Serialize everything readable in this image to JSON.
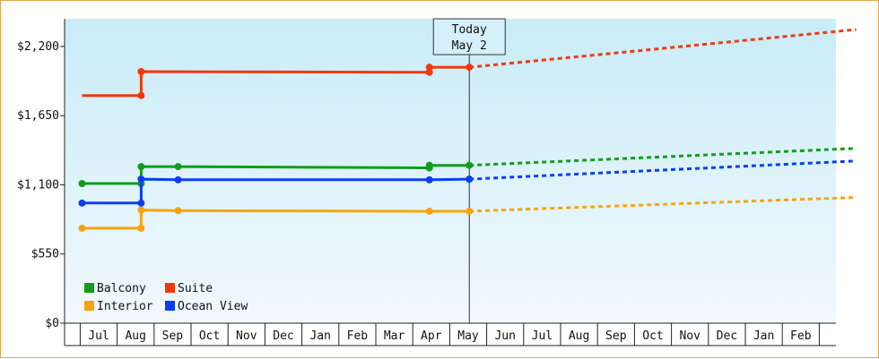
{
  "chart_data": {
    "type": "line",
    "title": "",
    "xlabel": "",
    "ylabel": "",
    "ylim": [
      0,
      2420
    ],
    "y_ticks": [
      {
        "value": 0,
        "label": "$0"
      },
      {
        "value": 550,
        "label": "$550"
      },
      {
        "value": 1100,
        "label": "$1,100"
      },
      {
        "value": 1650,
        "label": "$1,650"
      },
      {
        "value": 2200,
        "label": "$2,200"
      }
    ],
    "months": [
      "Jul",
      "Aug",
      "Sep",
      "Oct",
      "Nov",
      "Dec",
      "Jan",
      "Feb",
      "Mar",
      "Apr",
      "May",
      "Jun",
      "Jul",
      "Aug",
      "Sep",
      "Oct",
      "Nov",
      "Dec",
      "Jan",
      "Feb"
    ],
    "x_range": [
      -0.45,
      20.5
    ],
    "today": {
      "label_line1": "Today",
      "label_line2": "May 2",
      "x": 10.03
    },
    "background_gradient": [
      "#c9ecf8",
      "#f2f9fd"
    ],
    "grid": false,
    "legend_position": "bottom-left",
    "series": [
      {
        "name": "Balcony",
        "color": "#129c1b",
        "points": [
          [
            -0.45,
            1110
          ],
          [
            1.15,
            1110
          ],
          [
            1.15,
            1245
          ],
          [
            2.15,
            1245
          ],
          [
            8.95,
            1235
          ],
          [
            8.95,
            1255
          ],
          [
            10.03,
            1255
          ]
        ],
        "markers": [
          [
            -0.45,
            1110
          ],
          [
            1.15,
            1110
          ],
          [
            1.15,
            1245
          ],
          [
            2.15,
            1245
          ],
          [
            8.95,
            1235
          ],
          [
            8.95,
            1255
          ],
          [
            10.03,
            1255
          ]
        ],
        "forecast": [
          [
            10.03,
            1255
          ],
          [
            20.5,
            1390
          ]
        ]
      },
      {
        "name": "Interior",
        "color": "#f7a40c",
        "points": [
          [
            -0.45,
            755
          ],
          [
            1.15,
            755
          ],
          [
            1.15,
            900
          ],
          [
            2.15,
            895
          ],
          [
            8.95,
            890
          ],
          [
            10.03,
            890
          ]
        ],
        "markers": [
          [
            -0.45,
            755
          ],
          [
            1.15,
            755
          ],
          [
            1.15,
            900
          ],
          [
            2.15,
            895
          ],
          [
            8.95,
            890
          ],
          [
            10.03,
            890
          ]
        ],
        "forecast": [
          [
            10.03,
            890
          ],
          [
            20.5,
            1000
          ]
        ]
      },
      {
        "name": "Suite",
        "color": "#f2380c",
        "points": [
          [
            -0.45,
            1810
          ],
          [
            1.15,
            1810
          ],
          [
            1.15,
            2000
          ],
          [
            8.95,
            1995
          ],
          [
            8.95,
            2035
          ],
          [
            10.03,
            2035
          ]
        ],
        "markers": [
          [
            1.15,
            1810
          ],
          [
            1.15,
            2000
          ],
          [
            8.95,
            1995
          ],
          [
            8.95,
            2035
          ],
          [
            10.03,
            2035
          ]
        ],
        "forecast": [
          [
            10.03,
            2035
          ],
          [
            20.5,
            2335
          ]
        ]
      },
      {
        "name": "Ocean View",
        "color": "#0b3ef2",
        "points": [
          [
            -0.45,
            955
          ],
          [
            1.15,
            955
          ],
          [
            1.15,
            1145
          ],
          [
            2.15,
            1140
          ],
          [
            8.95,
            1140
          ],
          [
            10.03,
            1145
          ]
        ],
        "markers": [
          [
            -0.45,
            955
          ],
          [
            1.15,
            955
          ],
          [
            1.15,
            1145
          ],
          [
            2.15,
            1140
          ],
          [
            8.95,
            1140
          ],
          [
            10.03,
            1145
          ]
        ],
        "forecast": [
          [
            10.03,
            1145
          ],
          [
            20.5,
            1290
          ]
        ]
      }
    ]
  }
}
